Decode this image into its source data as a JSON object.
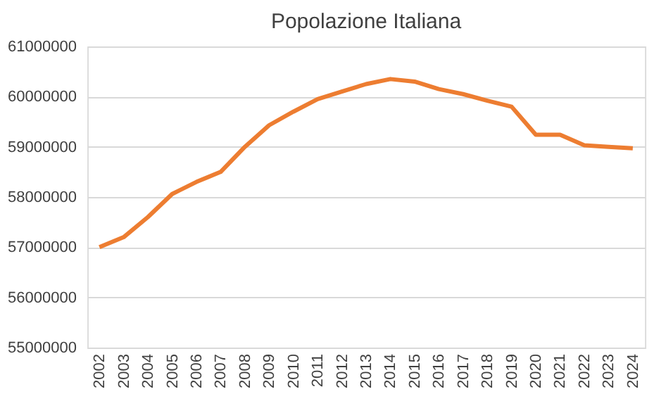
{
  "chart_data": {
    "type": "line",
    "title": "Popolazione Italiana",
    "categories": [
      "2002",
      "2003",
      "2004",
      "2005",
      "2006",
      "2007",
      "2008",
      "2009",
      "2010",
      "2011",
      "2012",
      "2013",
      "2014",
      "2015",
      "2016",
      "2017",
      "2018",
      "2019",
      "2020",
      "2021",
      "2022",
      "2023",
      "2024"
    ],
    "series": [
      {
        "color": "#ed7d31",
        "values": [
          57000000,
          57200000,
          57600000,
          58060000,
          58300000,
          58500000,
          59000000,
          59430000,
          59700000,
          59950000,
          60100000,
          60250000,
          60350000,
          60300000,
          60150000,
          60050000,
          59920000,
          59800000,
          59240000,
          59240000,
          59030000,
          59000000,
          58970000
        ]
      }
    ],
    "ylim": [
      55000000,
      61000000
    ],
    "yticks": [
      55000000,
      56000000,
      57000000,
      58000000,
      59000000,
      60000000,
      61000000
    ],
    "grid": "y",
    "legend": false,
    "marker": "none",
    "line_style": "solid"
  }
}
